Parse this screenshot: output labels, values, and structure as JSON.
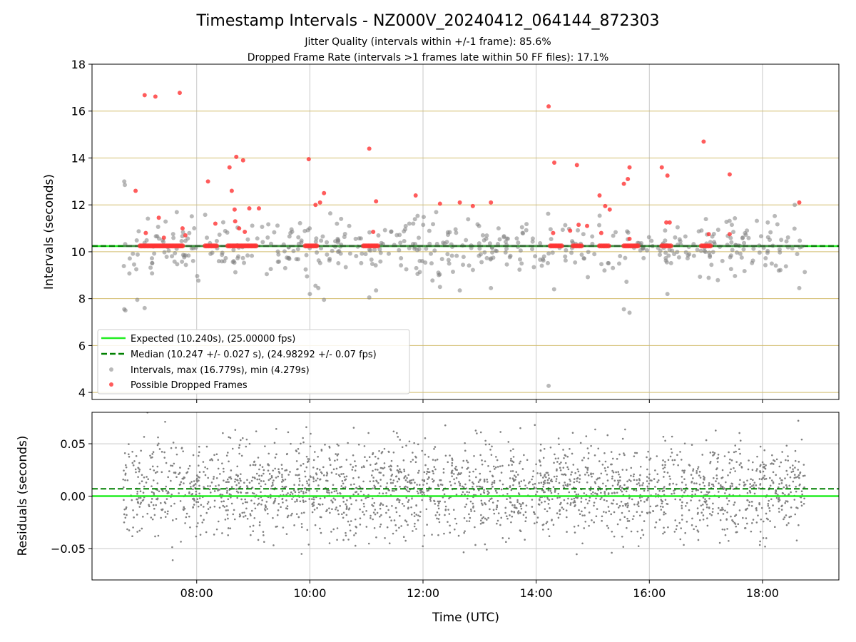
{
  "chart_data": {
    "title": "Timestamp Intervals - NZ000V_20240412_064144_872303",
    "subtitles": [
      "Jitter Quality (intervals within +/-1 frame): 85.6%",
      "Dropped Frame Rate (intervals >1 frames late within 50 FF files): 17.1%"
    ],
    "xlabel": "Time (UTC)",
    "x_ticks": [
      "08:00",
      "10:00",
      "12:00",
      "14:00",
      "16:00",
      "18:00"
    ],
    "x_tick_hours": [
      8,
      10,
      12,
      14,
      16,
      18
    ],
    "x_range_hours": [
      6.15,
      19.35
    ],
    "data_x_range_hours": [
      6.7,
      18.75
    ],
    "colors": {
      "expected": "#22ee22",
      "median": "#008000",
      "intervals": "#808080",
      "dropped": "#ff3333",
      "hgrid_top": "#d2bd6e",
      "vgrid": "#c8c8c8",
      "hgrid_bottom": "#c8c8c8"
    },
    "panels": [
      {
        "type": "scatter",
        "ylabel": "Intervals (seconds)",
        "ylim": [
          3.7,
          18.0
        ],
        "y_ticks": [
          4,
          6,
          8,
          10,
          12,
          14,
          16,
          18
        ],
        "y_tick_labels": [
          "4",
          "6",
          "8",
          "10",
          "12",
          "14",
          "16",
          "18"
        ],
        "grid": {
          "vertical": true,
          "horizontal": true
        },
        "expected_line": 10.24,
        "median_line": 10.247,
        "legend": {
          "placement": "lower-left",
          "entries": [
            {
              "label": "Expected (10.240s), (25.00000 fps)",
              "style": "solid-line",
              "color_key": "expected"
            },
            {
              "label": "Median (10.247 +/- 0.027 s), (24.98292 +/- 0.07 fps)",
              "style": "dashed-line",
              "color_key": "median"
            },
            {
              "label": "Intervals, max (16.779s), min (4.279s)",
              "style": "marker",
              "color_key": "intervals"
            },
            {
              "label": "Possible Dropped Frames",
              "style": "marker",
              "color_key": "dropped"
            }
          ]
        },
        "series": [
          {
            "name": "Possible Dropped Frames",
            "points": [
              [
                7.08,
                16.68
              ],
              [
                7.27,
                16.62
              ],
              [
                7.7,
                16.78
              ],
              [
                6.92,
                12.6
              ],
              [
                7.1,
                10.8
              ],
              [
                7.33,
                11.45
              ],
              [
                7.42,
                10.6
              ],
              [
                7.75,
                11.0
              ],
              [
                7.8,
                10.7
              ],
              [
                8.2,
                13.0
              ],
              [
                8.33,
                11.2
              ],
              [
                8.58,
                13.6
              ],
              [
                8.62,
                12.6
              ],
              [
                8.67,
                11.8
              ],
              [
                8.68,
                11.3
              ],
              [
                8.7,
                14.05
              ],
              [
                8.82,
                13.9
              ],
              [
                8.75,
                11.0
              ],
              [
                8.85,
                10.85
              ],
              [
                8.93,
                11.85
              ],
              [
                9.1,
                11.85
              ],
              [
                9.98,
                13.95
              ],
              [
                10.1,
                12.0
              ],
              [
                10.18,
                12.1
              ],
              [
                10.25,
                12.5
              ],
              [
                11.05,
                14.4
              ],
              [
                11.12,
                10.85
              ],
              [
                11.17,
                12.15
              ],
              [
                11.87,
                12.4
              ],
              [
                12.3,
                12.05
              ],
              [
                12.65,
                12.1
              ],
              [
                12.88,
                11.95
              ],
              [
                13.2,
                12.1
              ],
              [
                14.22,
                16.2
              ],
              [
                14.32,
                13.8
              ],
              [
                14.3,
                10.8
              ],
              [
                14.6,
                10.9
              ],
              [
                14.72,
                13.7
              ],
              [
                14.75,
                11.15
              ],
              [
                14.9,
                11.1
              ],
              [
                15.12,
                12.4
              ],
              [
                15.15,
                10.8
              ],
              [
                15.22,
                11.95
              ],
              [
                15.3,
                11.8
              ],
              [
                15.55,
                12.9
              ],
              [
                15.62,
                13.1
              ],
              [
                15.65,
                13.6
              ],
              [
                15.65,
                10.55
              ],
              [
                16.22,
                13.6
              ],
              [
                16.32,
                13.25
              ],
              [
                16.3,
                11.25
              ],
              [
                16.36,
                11.25
              ],
              [
                16.96,
                14.7
              ],
              [
                17.05,
                10.75
              ],
              [
                17.42,
                13.3
              ],
              [
                17.42,
                10.75
              ],
              [
                18.65,
                12.1
              ]
            ],
            "cluster_segments": [
              [
                7.0,
                7.75
              ],
              [
                8.15,
                8.35
              ],
              [
                8.55,
                9.05
              ],
              [
                9.92,
                10.12
              ],
              [
                10.95,
                11.2
              ],
              [
                14.25,
                14.45
              ],
              [
                14.65,
                14.8
              ],
              [
                15.12,
                15.28
              ],
              [
                15.55,
                15.8
              ],
              [
                16.22,
                16.38
              ],
              [
                16.92,
                17.08
              ]
            ],
            "cluster_value": 10.25
          },
          {
            "name": "Intervals",
            "outliers": [
              [
                6.72,
                13.0
              ],
              [
                6.73,
                12.85
              ],
              [
                6.72,
                7.55
              ],
              [
                6.74,
                7.5
              ],
              [
                6.95,
                7.95
              ],
              [
                7.08,
                7.6
              ],
              [
                9.95,
                8.95
              ],
              [
                10.0,
                8.2
              ],
              [
                10.1,
                8.55
              ],
              [
                10.15,
                8.45
              ],
              [
                10.25,
                7.95
              ],
              [
                11.05,
                8.05
              ],
              [
                11.17,
                8.35
              ],
              [
                12.3,
                8.5
              ],
              [
                12.65,
                8.35
              ],
              [
                13.2,
                8.45
              ],
              [
                15.55,
                7.55
              ],
              [
                15.65,
                7.4
              ],
              [
                16.32,
                8.2
              ],
              [
                18.65,
                8.45
              ],
              [
                14.22,
                4.28
              ]
            ],
            "bulk_mean": 10.25,
            "bulk_sd": 0.6
          }
        ]
      },
      {
        "type": "scatter",
        "ylabel": "Residuals (seconds)",
        "ylim": [
          -0.08,
          0.08
        ],
        "y_ticks": [
          -0.05,
          0.0,
          0.05
        ],
        "y_tick_labels": [
          "−0.05",
          "0.00",
          "0.05"
        ],
        "grid": {
          "vertical": true,
          "horizontal": true
        },
        "expected_line": 0.0,
        "median_line": 0.007,
        "series": [
          {
            "name": "Residuals",
            "mean": 0.007,
            "sd": 0.022,
            "count": 2400
          }
        ]
      }
    ]
  }
}
